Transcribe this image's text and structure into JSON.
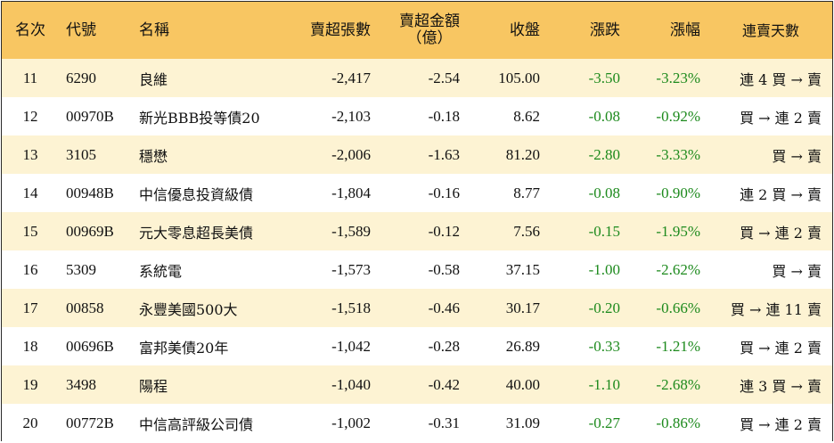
{
  "header": {
    "rank": "名次",
    "code": "代號",
    "name": "名稱",
    "sell_lots": "賣超張數",
    "sell_amount_line1": "賣超金額",
    "sell_amount_line2": "（億）",
    "close": "收盤",
    "change": "漲跌",
    "pct": "漲幅",
    "streak": "連賣天數"
  },
  "rows": [
    {
      "rank": "11",
      "code": "6290",
      "name": "良維",
      "sell_lots": "-2,417",
      "sell_amount": "-2.54",
      "close": "105.00",
      "change": "-3.50",
      "pct": "-3.23%",
      "streak": "連 4 買 → 賣"
    },
    {
      "rank": "12",
      "code": "00970B",
      "name": "新光BBB投等債20",
      "sell_lots": "-2,103",
      "sell_amount": "-0.18",
      "close": "8.62",
      "change": "-0.08",
      "pct": "-0.92%",
      "streak": "買 → 連 2 賣"
    },
    {
      "rank": "13",
      "code": "3105",
      "name": "穩懋",
      "sell_lots": "-2,006",
      "sell_amount": "-1.63",
      "close": "81.20",
      "change": "-2.80",
      "pct": "-3.33%",
      "streak": "買 → 賣"
    },
    {
      "rank": "14",
      "code": "00948B",
      "name": "中信優息投資級債",
      "sell_lots": "-1,804",
      "sell_amount": "-0.16",
      "close": "8.77",
      "change": "-0.08",
      "pct": "-0.90%",
      "streak": "連 2 買 → 賣"
    },
    {
      "rank": "15",
      "code": "00969B",
      "name": "元大零息超長美債",
      "sell_lots": "-1,589",
      "sell_amount": "-0.12",
      "close": "7.56",
      "change": "-0.15",
      "pct": "-1.95%",
      "streak": "買 → 連 2 賣"
    },
    {
      "rank": "16",
      "code": "5309",
      "name": "系統電",
      "sell_lots": "-1,573",
      "sell_amount": "-0.58",
      "close": "37.15",
      "change": "-1.00",
      "pct": "-2.62%",
      "streak": "買 → 賣"
    },
    {
      "rank": "17",
      "code": "00858",
      "name": "永豐美國500大",
      "sell_lots": "-1,518",
      "sell_amount": "-0.46",
      "close": "30.17",
      "change": "-0.20",
      "pct": "-0.66%",
      "streak": "買 → 連 11 賣"
    },
    {
      "rank": "18",
      "code": "00696B",
      "name": "富邦美債20年",
      "sell_lots": "-1,042",
      "sell_amount": "-0.28",
      "close": "26.89",
      "change": "-0.33",
      "pct": "-1.21%",
      "streak": "買 → 連 2 賣"
    },
    {
      "rank": "19",
      "code": "3498",
      "name": "陽程",
      "sell_lots": "-1,040",
      "sell_amount": "-0.42",
      "close": "40.00",
      "change": "-1.10",
      "pct": "-2.68%",
      "streak": "連 3 買 → 賣"
    },
    {
      "rank": "20",
      "code": "00772B",
      "name": "中信高評級公司債",
      "sell_lots": "-1,002",
      "sell_amount": "-0.31",
      "close": "31.09",
      "change": "-0.27",
      "pct": "-0.86%",
      "streak": "買 → 連 2 賣"
    }
  ],
  "colors": {
    "header_bg": "#f8c662",
    "odd_row_bg": "#fdf3d3",
    "even_row_bg": "#ffffff",
    "negative_change": "#1d8a1d"
  }
}
